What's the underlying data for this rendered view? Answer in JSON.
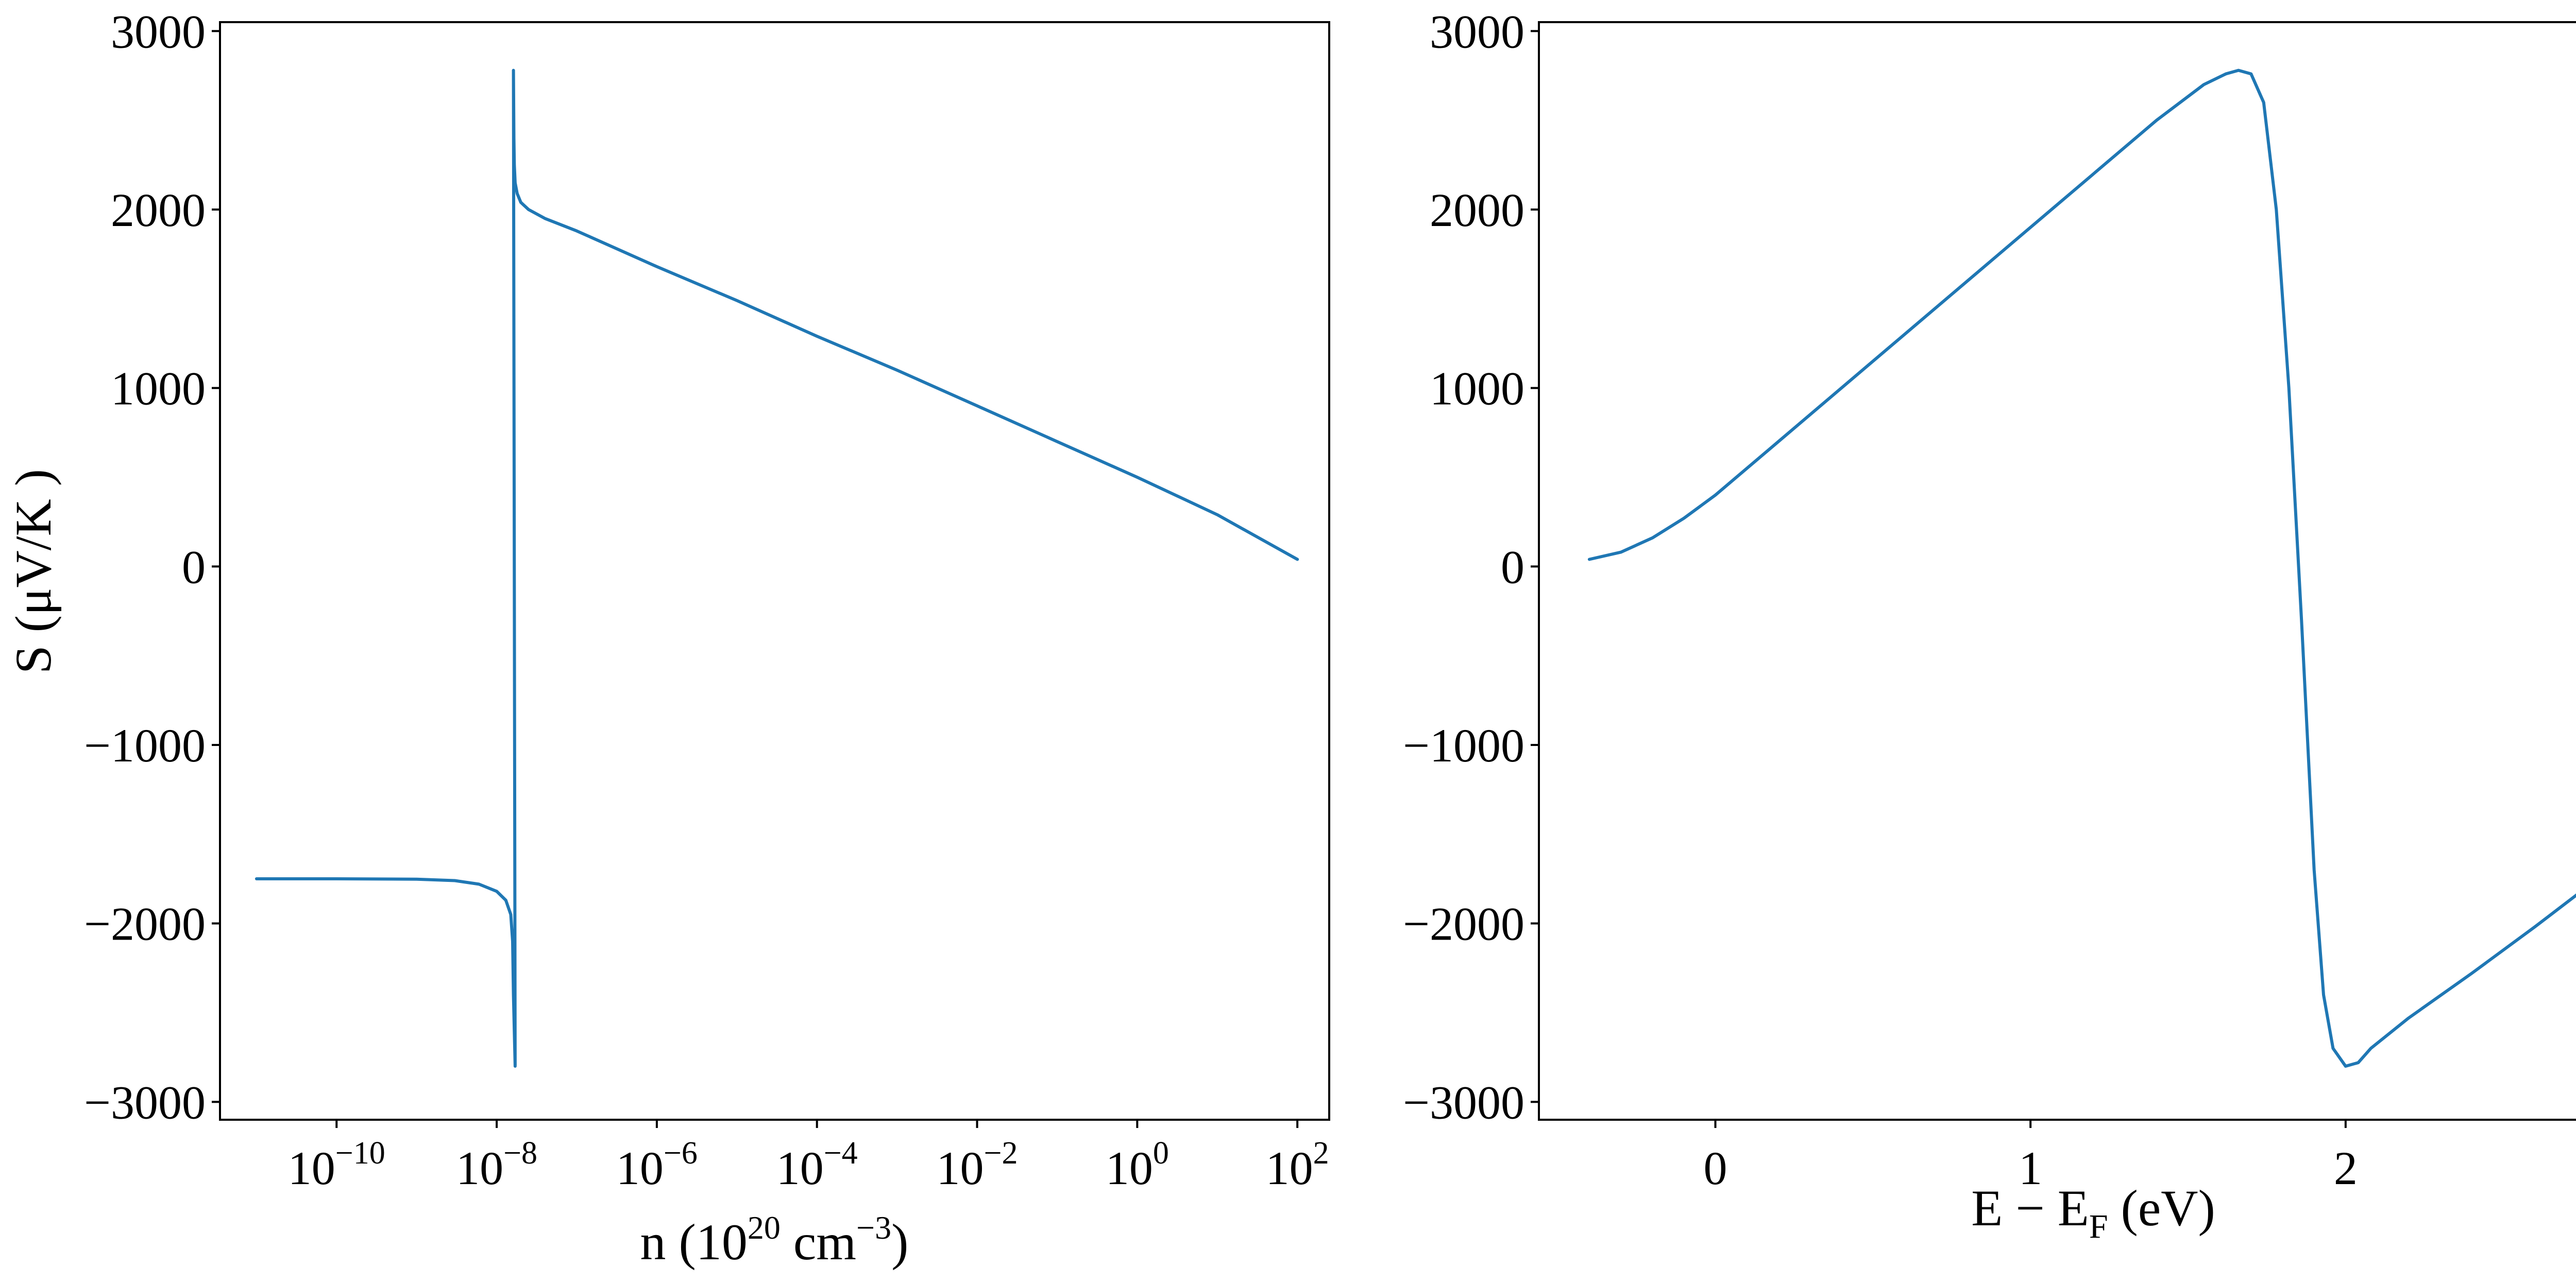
{
  "chart_data": [
    {
      "type": "line",
      "xlabel": {
        "base": "n (10",
        "exp1": "20",
        "mid": " cm",
        "exp2": "−3",
        "end": ")"
      },
      "ylabel": "S (μV/K )",
      "xscale": "log",
      "xlim": [
        3.5e-12,
        250.0
      ],
      "ylim": [
        -3100,
        3050
      ],
      "x_ticks": [
        {
          "value": 1e-10,
          "base": "10",
          "exp": "−10"
        },
        {
          "value": 1e-08,
          "base": "10",
          "exp": "−8"
        },
        {
          "value": 1e-06,
          "base": "10",
          "exp": "−6"
        },
        {
          "value": 0.0001,
          "base": "10",
          "exp": "−4"
        },
        {
          "value": 0.01,
          "base": "10",
          "exp": "−2"
        },
        {
          "value": 1,
          "base": "10",
          "exp": "0"
        },
        {
          "value": 100,
          "base": "10",
          "exp": "2"
        }
      ],
      "y_ticks": [
        {
          "value": 3000,
          "label": "3000"
        },
        {
          "value": 2000,
          "label": "2000"
        },
        {
          "value": 1000,
          "label": "1000"
        },
        {
          "value": 0,
          "label": "0"
        },
        {
          "value": -1000,
          "label": "−1000"
        },
        {
          "value": -2000,
          "label": "−2000"
        },
        {
          "value": -3000,
          "label": "−3000"
        }
      ],
      "series": [
        {
          "color": "#1f77b4",
          "x": [
            1e-11,
            1e-10,
            1e-09,
            3e-09,
            6e-09,
            1e-08,
            1.3e-08,
            1.5e-08,
            1.58e-08,
            1.62e-08,
            1.7e-08,
            1.62e-08,
            1.64e-08,
            1.66e-08,
            1.7e-08,
            1.8e-08,
            2e-08,
            2.5e-08,
            4e-08,
            1e-07,
            1e-06,
            1e-05,
            0.0001,
            0.001,
            0.01,
            0.1,
            1,
            10,
            100
          ],
          "y": [
            -1750,
            -1750,
            -1752,
            -1760,
            -1780,
            -1820,
            -1870,
            -1950,
            -2100,
            -2400,
            -2800,
            2780,
            2400,
            2250,
            2150,
            2090,
            2040,
            2000,
            1950,
            1880,
            1680,
            1490,
            1290,
            1100,
            900,
            700,
            500,
            290,
            40
          ]
        }
      ]
    },
    {
      "type": "line",
      "xlabel": {
        "pre": "E − E",
        "sub": "F",
        "post": " (eV)"
      },
      "ylabel": "",
      "xlim": [
        -0.56,
        2.96
      ],
      "ylim": [
        -3100,
        3050
      ],
      "x_ticks": [
        {
          "value": 0,
          "label": "0"
        },
        {
          "value": 1,
          "label": "1"
        },
        {
          "value": 2,
          "label": "2"
        }
      ],
      "y_ticks": [
        {
          "value": 3000,
          "label": "3000"
        },
        {
          "value": 2000,
          "label": "2000"
        },
        {
          "value": 1000,
          "label": "1000"
        },
        {
          "value": 0,
          "label": "0"
        },
        {
          "value": -1000,
          "label": "−1000"
        },
        {
          "value": -2000,
          "label": "−2000"
        },
        {
          "value": -3000,
          "label": "−3000"
        }
      ],
      "series": [
        {
          "color": "#1f77b4",
          "x": [
            -0.4,
            -0.3,
            -0.2,
            -0.1,
            0,
            0.2,
            0.5,
            0.8,
            1.1,
            1.4,
            1.55,
            1.62,
            1.66,
            1.7,
            1.74,
            1.78,
            1.82,
            1.86,
            1.9,
            1.93,
            1.96,
            2.0,
            2.04,
            2.08,
            2.2,
            2.4,
            2.6,
            2.8
          ],
          "y": [
            40,
            80,
            160,
            270,
            400,
            700,
            1150,
            1600,
            2050,
            2500,
            2700,
            2760,
            2780,
            2760,
            2600,
            2000,
            1000,
            -300,
            -1700,
            -2400,
            -2700,
            -2800,
            -2780,
            -2700,
            -2530,
            -2280,
            -2020,
            -1750
          ]
        }
      ]
    }
  ]
}
